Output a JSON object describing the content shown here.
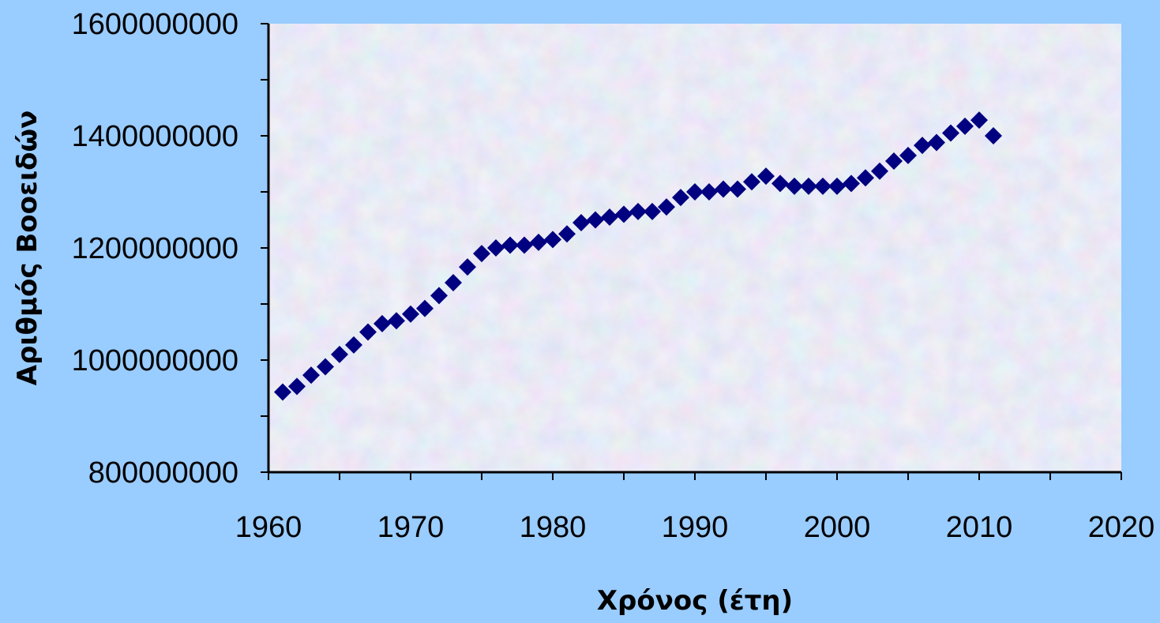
{
  "colors": {
    "page_background": "#99ccff",
    "plot_area_texture": [
      "#dde8f6",
      "#ecd6e8",
      "#d6ecf0",
      "#e6dcf2"
    ],
    "marker": "#000080",
    "axis": "#000000"
  },
  "chart_data": {
    "type": "scatter",
    "marker": "diamond",
    "xlabel": "Χρόνος (έτη)",
    "ylabel": "Αριθμός Βοοειδών",
    "xlim": [
      1960,
      2020
    ],
    "ylim": [
      800000000,
      1600000000
    ],
    "x_ticks": [
      "1960",
      "1970",
      "1980",
      "1990",
      "2000",
      "2010",
      "2020"
    ],
    "y_ticks": [
      "800000000",
      "1000000000",
      "1200000000",
      "1400000000",
      "1600000000"
    ],
    "x_minor_step": 5,
    "y_minor_step": 100000000,
    "grid": false,
    "legend": "none",
    "series": [
      {
        "x": [
          1961,
          1962,
          1963,
          1964,
          1965,
          1966,
          1967,
          1968,
          1969,
          1970,
          1971,
          1972,
          1973,
          1974,
          1975,
          1976,
          1977,
          1978,
          1979,
          1980,
          1981,
          1982,
          1983,
          1984,
          1985,
          1986,
          1987,
          1988,
          1989,
          1990,
          1991,
          1992,
          1993,
          1994,
          1995,
          1996,
          1997,
          1998,
          1999,
          2000,
          2001,
          2002,
          2003,
          2004,
          2005,
          2006,
          2007,
          2008,
          2009,
          2010,
          2011
        ],
        "y": [
          943000000,
          953000000,
          973000000,
          988000000,
          1010000000,
          1027000000,
          1050000000,
          1065000000,
          1070000000,
          1082000000,
          1092000000,
          1115000000,
          1138000000,
          1166000000,
          1190000000,
          1200000000,
          1205000000,
          1205000000,
          1210000000,
          1215000000,
          1225000000,
          1245000000,
          1250000000,
          1255000000,
          1260000000,
          1265000000,
          1265000000,
          1273000000,
          1290000000,
          1300000000,
          1300000000,
          1305000000,
          1305000000,
          1318000000,
          1328000000,
          1315000000,
          1310000000,
          1310000000,
          1310000000,
          1310000000,
          1315000000,
          1325000000,
          1337000000,
          1355000000,
          1365000000,
          1383000000,
          1388000000,
          1405000000,
          1417000000,
          1428000000,
          1400000000
        ]
      }
    ]
  }
}
